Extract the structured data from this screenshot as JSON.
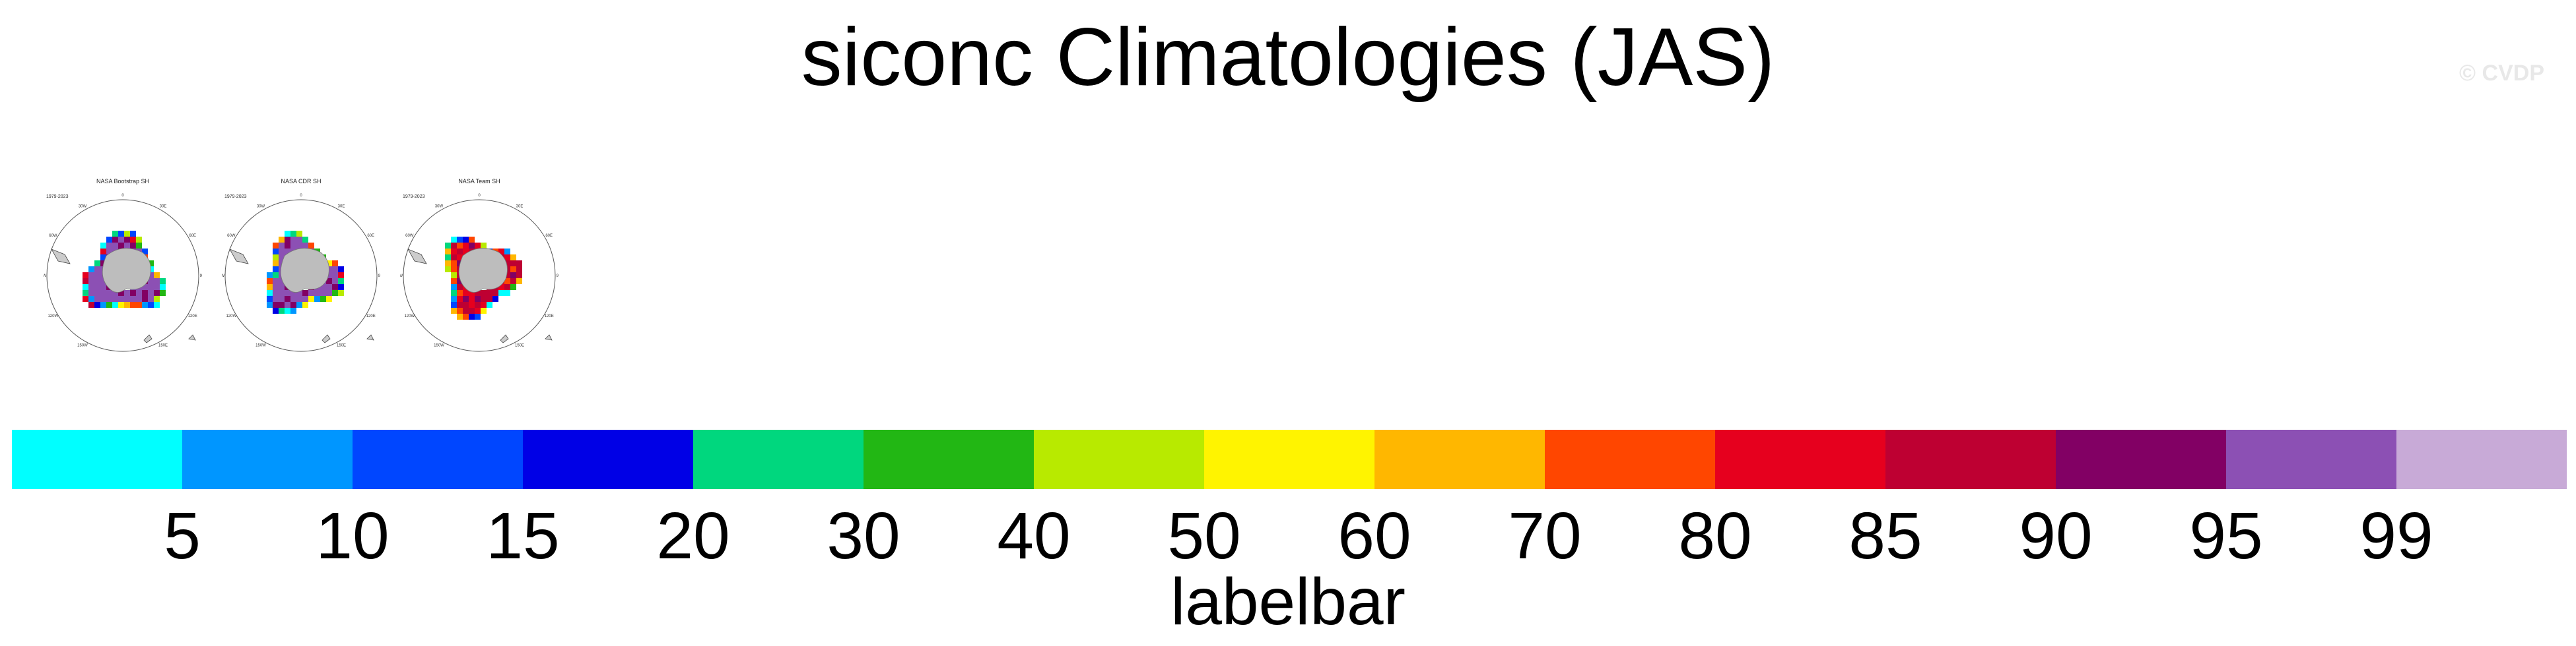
{
  "title": "siconc Climatologies (JAS)",
  "watermark": "© CVDP",
  "panels": [
    {
      "title": "NASA Bootstrap SH",
      "period": "1979-2023",
      "style": "purple"
    },
    {
      "title": "NASA CDR SH",
      "period": "1979-2023",
      "style": "purple"
    },
    {
      "title": "NASA Team SH",
      "period": "1979-2023",
      "style": "red"
    }
  ],
  "chart_data": {
    "type": "heatmap",
    "variable": "siconc",
    "season": "JAS",
    "projection": "south polar stereographic",
    "longitude_labels": [
      "0",
      "30E",
      "60E",
      "90E",
      "120E",
      "150E",
      "180",
      "150W",
      "120W",
      "90W",
      "60W",
      "30W"
    ],
    "labelbar": {
      "title": "labelbar",
      "levels": [
        5,
        10,
        15,
        20,
        30,
        40,
        50,
        60,
        70,
        80,
        85,
        90,
        95,
        99
      ],
      "colors": [
        "#00ffff",
        "#0096ff",
        "#0046ff",
        "#0000e6",
        "#00d77e",
        "#22b714",
        "#b8ea00",
        "#fff400",
        "#ffb700",
        "#ff4600",
        "#e6001e",
        "#be0032",
        "#820064",
        "#8c50b4",
        "#c8aad7"
      ]
    }
  }
}
